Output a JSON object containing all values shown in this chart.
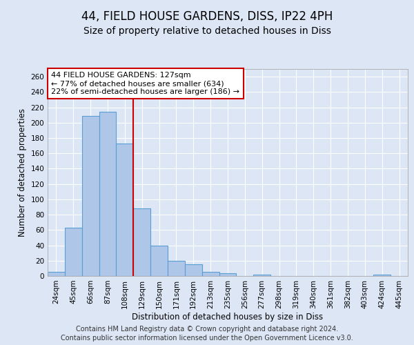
{
  "title_line1": "44, FIELD HOUSE GARDENS, DISS, IP22 4PH",
  "title_line2": "Size of property relative to detached houses in Diss",
  "xlabel": "Distribution of detached houses by size in Diss",
  "ylabel": "Number of detached properties",
  "categories": [
    "24sqm",
    "45sqm",
    "66sqm",
    "87sqm",
    "108sqm",
    "129sqm",
    "150sqm",
    "171sqm",
    "192sqm",
    "213sqm",
    "235sqm",
    "256sqm",
    "277sqm",
    "298sqm",
    "319sqm",
    "340sqm",
    "361sqm",
    "382sqm",
    "403sqm",
    "424sqm",
    "445sqm"
  ],
  "values": [
    5,
    63,
    209,
    214,
    173,
    88,
    40,
    20,
    15,
    5,
    4,
    0,
    2,
    0,
    0,
    0,
    0,
    0,
    0,
    2,
    0
  ],
  "bar_color": "#aec6e8",
  "bar_edge_color": "#5a9fd4",
  "annotation_text": "44 FIELD HOUSE GARDENS: 127sqm\n← 77% of detached houses are smaller (634)\n22% of semi-detached houses are larger (186) →",
  "annotation_box_color": "#ffffff",
  "annotation_border_color": "#cc0000",
  "ylim": [
    0,
    270
  ],
  "yticks": [
    0,
    20,
    40,
    60,
    80,
    100,
    120,
    140,
    160,
    180,
    200,
    220,
    240,
    260
  ],
  "background_color": "#dce6f5",
  "plot_bg_color": "#dce6f5",
  "grid_color": "#ffffff",
  "footer_line1": "Contains HM Land Registry data © Crown copyright and database right 2024.",
  "footer_line2": "Contains public sector information licensed under the Open Government Licence v3.0.",
  "title_fontsize": 12,
  "subtitle_fontsize": 10,
  "axis_label_fontsize": 8.5,
  "tick_fontsize": 7.5,
  "annotation_fontsize": 8,
  "footer_fontsize": 7,
  "red_line_color": "#cc0000"
}
